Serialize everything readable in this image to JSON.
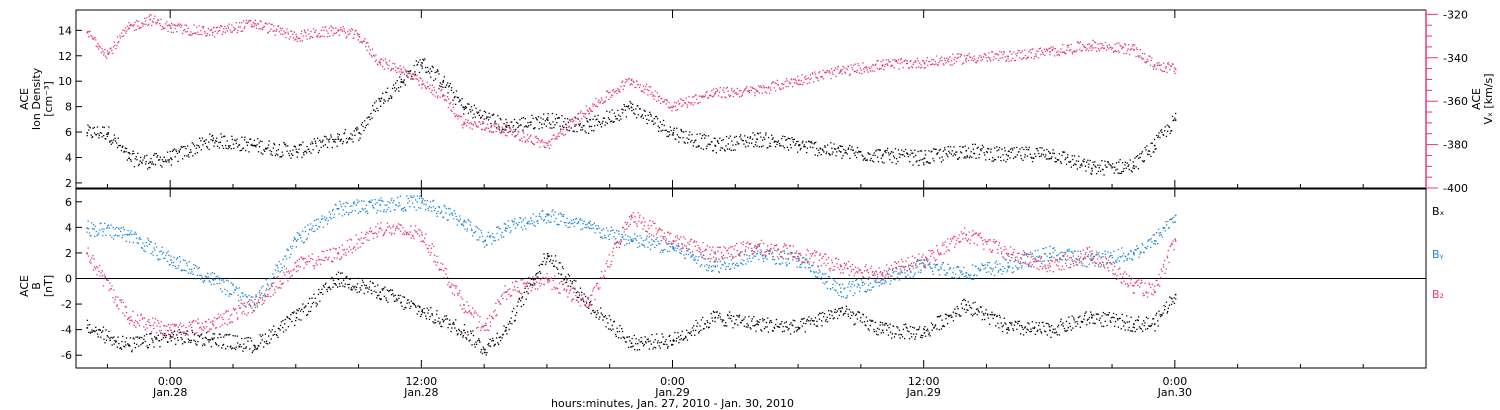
{
  "chart_data": [
    {
      "type": "scatter",
      "panel": "top",
      "y_left": {
        "label_lines": [
          "ACE",
          "Ion Density",
          "[cm⁻³]"
        ],
        "ticks": [
          "2",
          "4",
          "6",
          "8",
          "10",
          "12",
          "14"
        ],
        "ylim": [
          1.6,
          15.6
        ]
      },
      "y_right": {
        "label_lines": [
          "ACE",
          "Vₓ [km/s]"
        ],
        "ticks": [
          "-320",
          "-340",
          "-360",
          "-380",
          "-400"
        ],
        "ylim": [
          -400,
          -318
        ]
      },
      "series": [
        {
          "color": "#000000",
          "axis": "left",
          "x": [
            -4,
            -3,
            -2,
            -1,
            0,
            2,
            4,
            6,
            8,
            9,
            10,
            11,
            12,
            13,
            14,
            16,
            18,
            20,
            22,
            24,
            26,
            28,
            30,
            32,
            34,
            36,
            38,
            40,
            42,
            44,
            46,
            47,
            48
          ],
          "values": [
            6,
            6,
            4,
            3.7,
            4,
            5.4,
            5,
            4.5,
            5.5,
            6,
            8.5,
            10,
            11.5,
            10,
            8,
            6.5,
            7,
            6.5,
            8,
            6,
            5,
            5.5,
            5,
            4.5,
            4.2,
            4,
            4.6,
            4.2,
            4.4,
            3.2,
            3.4,
            5,
            7
          ]
        },
        {
          "color": "#e8396a",
          "axis": "right",
          "x": [
            -4,
            -3,
            -2,
            -1,
            0,
            2,
            4,
            6,
            8,
            9,
            10,
            11,
            12,
            13,
            14,
            16,
            18,
            20,
            22,
            24,
            26,
            28,
            30,
            32,
            34,
            36,
            38,
            40,
            42,
            44,
            46,
            47,
            48
          ],
          "values": [
            -328,
            -338,
            -326,
            -322,
            -326,
            -328,
            -324,
            -330,
            -327,
            -330,
            -342,
            -345,
            -352,
            -357,
            -370,
            -373,
            -380,
            -363,
            -350,
            -362,
            -356,
            -355,
            -350,
            -346,
            -343,
            -342,
            -340,
            -339,
            -337,
            -334,
            -336,
            -343,
            -345
          ]
        }
      ]
    },
    {
      "type": "scatter",
      "panel": "bottom",
      "y_left": {
        "label_lines": [
          "ACE",
          "B",
          "[nT]"
        ],
        "ticks": [
          "-6",
          "-4",
          "-2",
          "0",
          "2",
          "4",
          "6"
        ],
        "ylim": [
          -7,
          7
        ]
      },
      "legend": [
        "Bₓ",
        "Bᵧ",
        "B₂"
      ],
      "series": [
        {
          "name": "Bₓ",
          "color": "#000000",
          "x": [
            -4,
            -2,
            0,
            2,
            4,
            6,
            8,
            10,
            12,
            14,
            15,
            16,
            18,
            20,
            22,
            24,
            26,
            28,
            30,
            32,
            34,
            36,
            38,
            40,
            42,
            44,
            46,
            47,
            48
          ],
          "values": [
            -3.8,
            -5.2,
            -4.5,
            -4.7,
            -5.2,
            -3,
            0,
            -1,
            -2.5,
            -4,
            -5.5,
            -4,
            2,
            -2,
            -5,
            -4.8,
            -3,
            -3.5,
            -3.8,
            -2.5,
            -4,
            -4.2,
            -2,
            -3.8,
            -4,
            -3,
            -3.5,
            -3.5,
            -1.2
          ]
        },
        {
          "name": "Bᵧ",
          "color": "#1f86d8",
          "x": [
            -4,
            -2,
            0,
            2,
            4,
            6,
            8,
            10,
            12,
            14,
            15,
            16,
            18,
            20,
            22,
            24,
            26,
            28,
            30,
            32,
            34,
            36,
            38,
            40,
            42,
            44,
            46,
            47,
            48
          ],
          "values": [
            4,
            3.5,
            1.5,
            0,
            -2,
            3,
            5.5,
            5.8,
            6,
            4.5,
            3,
            4,
            5,
            4,
            3,
            2.5,
            1,
            2,
            1.5,
            -1,
            0,
            1,
            0.5,
            1,
            2,
            1.5,
            2,
            3,
            5
          ]
        },
        {
          "name": "B₂",
          "color": "#e8396a",
          "x": [
            -4,
            -2,
            0,
            2,
            4,
            6,
            8,
            10,
            12,
            14,
            15,
            16,
            18,
            20,
            22,
            24,
            26,
            28,
            30,
            32,
            34,
            36,
            38,
            40,
            42,
            44,
            46,
            47,
            48
          ],
          "values": [
            2,
            -3,
            -4,
            -3.5,
            -2,
            1,
            2,
            4,
            3.5,
            -2,
            -4,
            -1,
            0,
            -2,
            5,
            3,
            2,
            2.5,
            2,
            1,
            0.5,
            1.5,
            3.5,
            2,
            1,
            2,
            -0.5,
            -1,
            3
          ]
        }
      ]
    }
  ],
  "x_axis": {
    "xlim": [
      -4.5,
      60
    ],
    "ticks": [
      {
        "x": 0,
        "time": "0:00",
        "date": "Jan.28"
      },
      {
        "x": 12,
        "time": "12:00",
        "date": "Jan.28"
      },
      {
        "x": 24,
        "time": "0:00",
        "date": "Jan.29"
      },
      {
        "x": 36,
        "time": "12:00",
        "date": "Jan.29"
      },
      {
        "x": 48,
        "time": "0:00",
        "date": "Jan.30"
      }
    ],
    "label": "hours:minutes, Jan. 27, 2010 - Jan. 30, 2010"
  }
}
